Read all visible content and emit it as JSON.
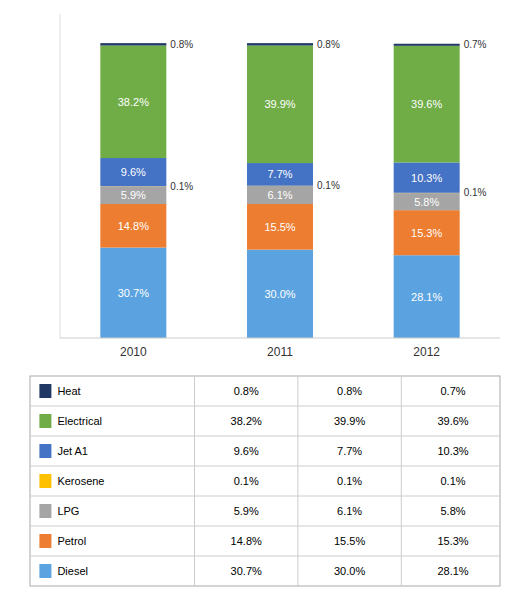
{
  "chart_data": {
    "type": "bar",
    "stacked": true,
    "data_labels": true,
    "categories": [
      "2010",
      "2011",
      "2012"
    ],
    "series": [
      {
        "name": "Diesel",
        "color": "#5BA3E0",
        "values": [
          30.7,
          30.0,
          28.1
        ],
        "value_labels": [
          "30.7%",
          "30.0%",
          "28.1%"
        ]
      },
      {
        "name": "Petrol",
        "color": "#ED7D31",
        "values": [
          14.8,
          15.5,
          15.3
        ],
        "value_labels": [
          "14.8%",
          "15.5%",
          "15.3%"
        ]
      },
      {
        "name": "LPG",
        "color": "#A5A5A5",
        "values": [
          5.9,
          6.1,
          5.8
        ],
        "value_labels": [
          "5.9%",
          "6.1%",
          "5.8%"
        ]
      },
      {
        "name": "Kerosene",
        "color": "#FFC000",
        "values": [
          0.1,
          0.1,
          0.1
        ],
        "value_labels": [
          "0.1%",
          "0.1%",
          "0.1%"
        ]
      },
      {
        "name": "Jet A1",
        "color": "#4472C4",
        "values": [
          9.6,
          7.7,
          10.3
        ],
        "value_labels": [
          "9.6%",
          "7.7%",
          "10.3%"
        ]
      },
      {
        "name": "Electrical",
        "color": "#70AD47",
        "values": [
          38.2,
          39.9,
          39.6
        ],
        "value_labels": [
          "38.2%",
          "39.9%",
          "39.6%"
        ]
      },
      {
        "name": "Heat",
        "color": "#1F3864",
        "values": [
          0.8,
          0.8,
          0.7
        ],
        "value_labels": [
          "0.8%",
          "0.8%",
          "0.7%"
        ]
      }
    ],
    "ylim": [
      0,
      110
    ],
    "tick_labels": "x"
  }
}
